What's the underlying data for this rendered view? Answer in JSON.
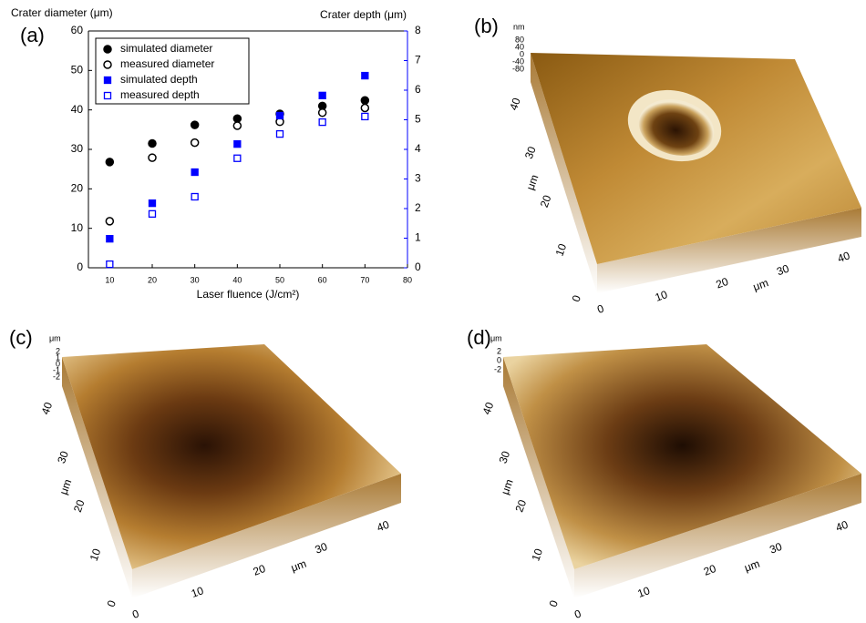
{
  "chart_data": {
    "type": "scatter",
    "panel_label": "(a)",
    "ylabel": "Crater diameter (μm)",
    "y2label": "Crater depth (μm)",
    "xlabel": "Laser fluence (J/cm²)",
    "x": [
      10,
      20,
      30,
      40,
      50,
      60,
      70
    ],
    "xlim": [
      5,
      80
    ],
    "xticks": [
      10,
      20,
      30,
      40,
      50,
      60,
      70,
      80
    ],
    "ylim": [
      0,
      60
    ],
    "yticks": [
      0,
      10,
      20,
      30,
      40,
      50,
      60
    ],
    "y2lim": [
      0,
      8
    ],
    "y2ticks": [
      0,
      1,
      2,
      3,
      4,
      5,
      6,
      7,
      8
    ],
    "y2color": "#0000ff",
    "legend": "upper left",
    "series": [
      {
        "name": "simulated diameter",
        "color": "#000000",
        "marker": "circle",
        "filled": true,
        "values": [
          26.8,
          31.5,
          36.2,
          37.8,
          39.0,
          41.0,
          42.4
        ]
      },
      {
        "name": "measured diameter",
        "color": "#000000",
        "marker": "circle",
        "filled": false,
        "values": [
          11.8,
          27.9,
          31.7,
          36.0,
          37.0,
          39.3,
          40.5
        ]
      },
      {
        "name": "simulated depth",
        "color": "#0000ff",
        "marker": "square",
        "filled": true,
        "axis": "y2",
        "values": [
          0.98,
          2.18,
          3.23,
          4.18,
          5.14,
          5.82,
          6.49
        ]
      },
      {
        "name": "measured depth",
        "color": "#0000ff",
        "marker": "square",
        "filled": false,
        "axis": "y2",
        "values": [
          0.12,
          1.82,
          2.4,
          3.7,
          4.52,
          4.92,
          5.11
        ]
      }
    ]
  },
  "panels": [
    {
      "label": "(b)",
      "z_unit": "nm",
      "z_ticks": [
        "80",
        "40",
        "0",
        "-40",
        "-80"
      ],
      "axis_unit": "μm",
      "xy_ticks": [
        "0",
        "10",
        "20",
        "30",
        "40"
      ]
    },
    {
      "label": "(c)",
      "z_unit": "μm",
      "z_ticks": [
        "2",
        "1",
        "0",
        "-1",
        "-2"
      ],
      "axis_unit": "μm",
      "xy_ticks": [
        "0",
        "10",
        "20",
        "30",
        "40"
      ]
    },
    {
      "label": "(d)",
      "z_unit": "μm",
      "z_ticks": [
        "2",
        "0",
        "-2"
      ],
      "axis_unit": "μm",
      "xy_ticks": [
        "0",
        "10",
        "20",
        "30",
        "40"
      ]
    }
  ]
}
